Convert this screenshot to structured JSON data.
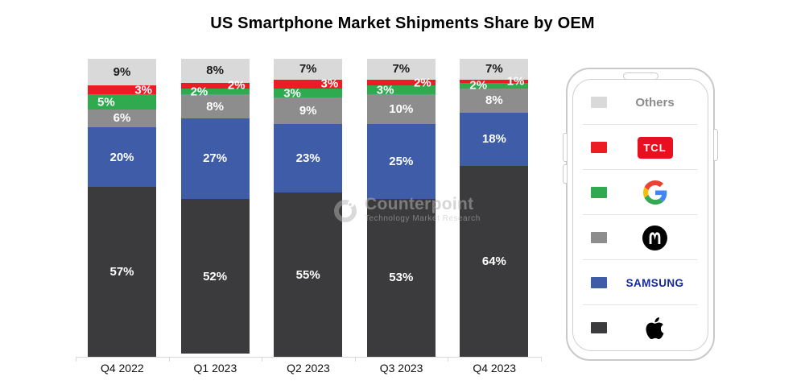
{
  "title": "US Smartphone Market Shipments Share by OEM",
  "watermark": {
    "brand": "Counterpoint",
    "tagline": "Technology Market Research"
  },
  "chart_data": {
    "type": "bar",
    "variant": "stacked-percent",
    "title": "US Smartphone Market Shipments Share by OEM",
    "categories": [
      "Q4 2022",
      "Q1 2023",
      "Q2 2023",
      "Q3 2023",
      "Q4 2023"
    ],
    "series": [
      {
        "name": "Apple",
        "color": "#3b3b3d",
        "values": [
          57,
          52,
          55,
          53,
          64
        ]
      },
      {
        "name": "Samsung",
        "color": "#3e5ca8",
        "values": [
          20,
          27,
          23,
          25,
          18
        ]
      },
      {
        "name": "Motorola",
        "color": "#8d8d8d",
        "values": [
          6,
          8,
          9,
          10,
          8
        ]
      },
      {
        "name": "Google",
        "color": "#2faa4e",
        "values": [
          5,
          2,
          3,
          3,
          2
        ]
      },
      {
        "name": "TCL",
        "color": "#ed1c24",
        "values": [
          3,
          2,
          3,
          2,
          1
        ]
      },
      {
        "name": "Others",
        "color": "#d9d9d9",
        "values": [
          9,
          8,
          7,
          7,
          7
        ]
      }
    ],
    "unit": "%",
    "ylim": [
      0,
      100
    ],
    "grid": false,
    "legend_position": "right-phone-graphic"
  },
  "legend": {
    "items": [
      {
        "name": "others",
        "label": "Others",
        "swatch": "#d9d9d9",
        "logo": "others-text"
      },
      {
        "name": "tcl",
        "label": "TCL",
        "swatch": "#ed1c24",
        "logo": "tcl-badge"
      },
      {
        "name": "google",
        "label": "",
        "swatch": "#2faa4e",
        "logo": "google-g"
      },
      {
        "name": "motorola",
        "label": "",
        "swatch": "#8d8d8d",
        "logo": "motorola-m"
      },
      {
        "name": "samsung",
        "label": "SAMSUNG",
        "swatch": "#3e5ca8",
        "logo": "samsung-word"
      },
      {
        "name": "apple",
        "label": "",
        "swatch": "#3b3b3d",
        "logo": "apple-mark"
      }
    ]
  }
}
